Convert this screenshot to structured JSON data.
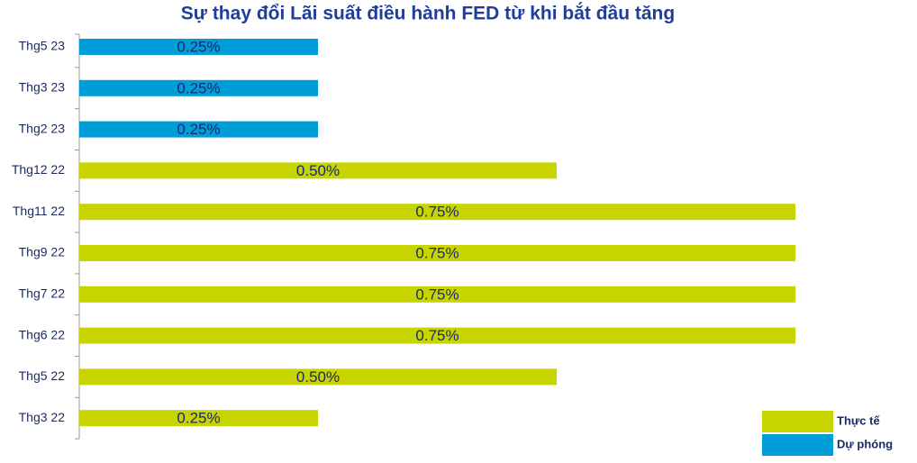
{
  "chart_data": {
    "type": "bar",
    "orientation": "horizontal",
    "title": "Sự thay đổi Lãi suất điều hành FED từ khi bắt đầu tăng",
    "categories": [
      "Thg5 23",
      "Thg3 23",
      "Thg2 23",
      "Thg12 22",
      "Thg11 22",
      "Thg9 22",
      "Thg7 22",
      "Thg6 22",
      "Thg5 22",
      "Thg3 22"
    ],
    "series": [
      {
        "name": "Thực tế",
        "color": "#c8d400",
        "values": [
          null,
          null,
          null,
          0.5,
          0.75,
          0.75,
          0.75,
          0.75,
          0.5,
          0.25
        ],
        "value_labels": [
          null,
          null,
          null,
          "0.50%",
          "0.75%",
          "0.75%",
          "0.75%",
          "0.75%",
          "0.50%",
          "0.25%"
        ]
      },
      {
        "name": "Dự phóng",
        "color": "#009ed8",
        "values": [
          0.25,
          0.25,
          0.25,
          null,
          null,
          null,
          null,
          null,
          null,
          null
        ],
        "value_labels": [
          "0.25%",
          "0.25%",
          "0.25%",
          null,
          null,
          null,
          null,
          null,
          null,
          null
        ]
      }
    ],
    "legend": "bottom-right"
  }
}
